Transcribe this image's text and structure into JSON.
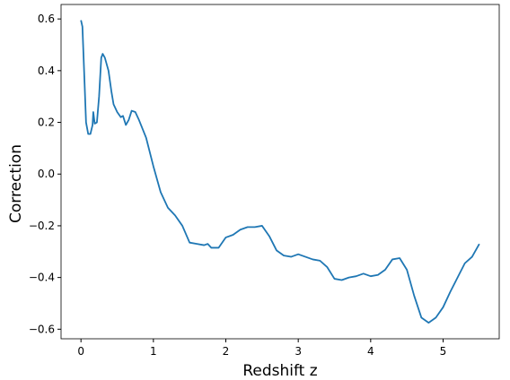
{
  "chart_data": {
    "type": "line",
    "xlabel": "Redshift z",
    "ylabel": "Correction",
    "x": [
      0,
      0.02,
      0.05,
      0.07,
      0.1,
      0.13,
      0.16,
      0.17,
      0.19,
      0.22,
      0.25,
      0.28,
      0.3,
      0.33,
      0.38,
      0.42,
      0.45,
      0.5,
      0.55,
      0.58,
      0.62,
      0.66,
      0.7,
      0.75,
      0.8,
      0.9,
      1.0,
      1.1,
      1.2,
      1.3,
      1.4,
      1.5,
      1.6,
      1.7,
      1.75,
      1.8,
      1.9,
      2.0,
      2.1,
      2.2,
      2.3,
      2.4,
      2.5,
      2.6,
      2.7,
      2.8,
      2.9,
      3.0,
      3.1,
      3.2,
      3.3,
      3.4,
      3.5,
      3.6,
      3.7,
      3.8,
      3.9,
      4.0,
      4.1,
      4.2,
      4.3,
      4.4,
      4.5,
      4.6,
      4.7,
      4.8,
      4.9,
      5.0,
      5.1,
      5.2,
      5.3,
      5.4,
      5.5
    ],
    "series": [
      {
        "name": "Correction",
        "color": "#1f77b4",
        "values": [
          0.595,
          0.57,
          0.35,
          0.2,
          0.155,
          0.155,
          0.19,
          0.24,
          0.195,
          0.2,
          0.3,
          0.45,
          0.465,
          0.45,
          0.4,
          0.32,
          0.27,
          0.24,
          0.22,
          0.225,
          0.19,
          0.21,
          0.245,
          0.24,
          0.21,
          0.14,
          0.03,
          -0.07,
          -0.13,
          -0.16,
          -0.2,
          -0.265,
          -0.27,
          -0.275,
          -0.27,
          -0.285,
          -0.285,
          -0.245,
          -0.235,
          -0.215,
          -0.205,
          -0.205,
          -0.2,
          -0.24,
          -0.295,
          -0.315,
          -0.32,
          -0.31,
          -0.32,
          -0.33,
          -0.335,
          -0.36,
          -0.405,
          -0.41,
          -0.4,
          -0.395,
          -0.385,
          -0.395,
          -0.39,
          -0.37,
          -0.33,
          -0.325,
          -0.37,
          -0.47,
          -0.555,
          -0.575,
          -0.555,
          -0.515,
          -0.455,
          -0.4,
          -0.345,
          -0.32,
          -0.27
        ]
      }
    ],
    "xlim": [
      -0.275,
      5.775
    ],
    "ylim": [
      -0.637,
      0.656
    ],
    "xticks": [
      0,
      1,
      2,
      3,
      4,
      5
    ],
    "yticks": [
      {
        "value": -0.6,
        "label": "−0.6"
      },
      {
        "value": -0.4,
        "label": "−0.4"
      },
      {
        "value": -0.2,
        "label": "−0.2"
      },
      {
        "value": 0,
        "label": "0.0"
      },
      0.2,
      0.4,
      0.6
    ]
  }
}
